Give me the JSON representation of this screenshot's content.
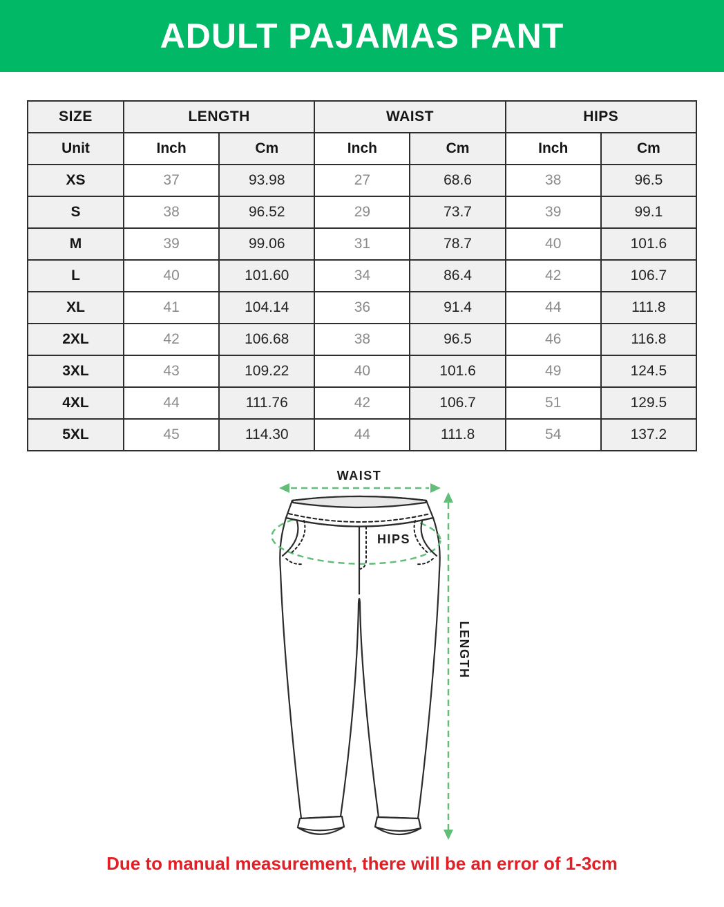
{
  "banner": {
    "title": "ADULT PAJAMAS PANT"
  },
  "table": {
    "group_headers": [
      {
        "label": "SIZE",
        "colspan": 1
      },
      {
        "label": "LENGTH",
        "colspan": 2
      },
      {
        "label": "WAIST",
        "colspan": 2
      },
      {
        "label": "HIPS",
        "colspan": 2
      }
    ],
    "unit_row": [
      "Unit",
      "Inch",
      "Cm",
      "Inch",
      "Cm",
      "Inch",
      "Cm"
    ],
    "rows": [
      {
        "size": "XS",
        "values": [
          "37",
          "93.98",
          "27",
          "68.6",
          "38",
          "96.5"
        ]
      },
      {
        "size": "S",
        "values": [
          "38",
          "96.52",
          "29",
          "73.7",
          "39",
          "99.1"
        ]
      },
      {
        "size": "M",
        "values": [
          "39",
          "99.06",
          "31",
          "78.7",
          "40",
          "101.6"
        ]
      },
      {
        "size": "L",
        "values": [
          "40",
          "101.60",
          "34",
          "86.4",
          "42",
          "106.7"
        ]
      },
      {
        "size": "XL",
        "values": [
          "41",
          "104.14",
          "36",
          "91.4",
          "44",
          "111.8"
        ]
      },
      {
        "size": "2XL",
        "values": [
          "42",
          "106.68",
          "38",
          "96.5",
          "46",
          "116.8"
        ]
      },
      {
        "size": "3XL",
        "values": [
          "43",
          "109.22",
          "40",
          "101.6",
          "49",
          "124.5"
        ]
      },
      {
        "size": "4XL",
        "values": [
          "44",
          "111.76",
          "42",
          "106.7",
          "51",
          "129.5"
        ]
      },
      {
        "size": "5XL",
        "values": [
          "45",
          "114.30",
          "44",
          "111.8",
          "54",
          "137.2"
        ]
      }
    ]
  },
  "diagram": {
    "waist_label": "WAIST",
    "hips_label": "HIPS",
    "length_label": "LENGTH"
  },
  "note": {
    "text": "Due to manual measurement, there will be an error of 1-3cm"
  },
  "colors": {
    "banner_green": "#00b866",
    "arrow_green": "#62bd78",
    "note_red": "#e01f26"
  }
}
